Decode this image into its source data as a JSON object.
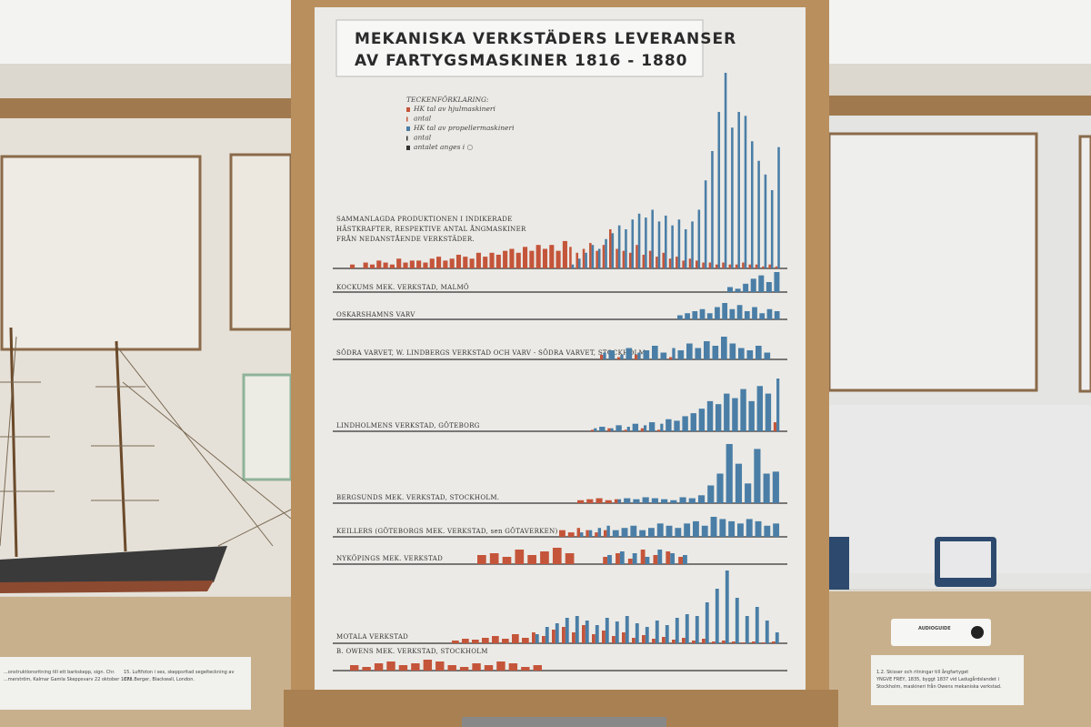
{
  "panel": {
    "title_lines": [
      "MEKANISKA VERKSTÄDERS LEVERANSER",
      "AV FARTYGSMASKINER 1816 - 1880"
    ],
    "legend": {
      "heading": "TECKENFÖRKLARING:",
      "items": [
        "HK tal av hjulmaskineri",
        "antal",
        "HK tal av propellermaskineri",
        "antal",
        "antalet anges i ○"
      ]
    },
    "summary_note": [
      "SAMMANLAGDA PRODUKTIONEN I INDIKERADE",
      "HÄSTKRAFTER, RESPEKTIVE ANTAL ÅNGMASKINER",
      "FRÅN NEDANSTÅENDE VERKSTÄDER."
    ],
    "summary": {
      "paddle": [
        2,
        0,
        3,
        2,
        4,
        3,
        2,
        5,
        3,
        4,
        4,
        3,
        5,
        6,
        4,
        5,
        7,
        6,
        5,
        8,
        6,
        8,
        7,
        9,
        10,
        8,
        11,
        9,
        12,
        10,
        12,
        9,
        14,
        11,
        8,
        10,
        13,
        9,
        12,
        20,
        10,
        9,
        8,
        12,
        7,
        9,
        6,
        8,
        5,
        6,
        4,
        5,
        4,
        3,
        3,
        2,
        3,
        2,
        2,
        3,
        2,
        2,
        1,
        2,
        1
      ],
      "propeller": [
        0,
        0,
        0,
        0,
        0,
        0,
        0,
        0,
        0,
        0,
        0,
        0,
        0,
        0,
        0,
        0,
        0,
        0,
        0,
        0,
        0,
        0,
        0,
        0,
        0,
        0,
        0,
        0,
        0,
        0,
        0,
        0,
        0,
        2,
        5,
        8,
        12,
        10,
        15,
        18,
        22,
        20,
        25,
        28,
        26,
        30,
        24,
        27,
        22,
        25,
        20,
        24,
        30,
        45,
        60,
        80,
        100,
        72,
        80,
        78,
        65,
        55,
        48,
        40,
        62
      ]
    },
    "rows": [
      {
        "label": "KOCKUMS MEK. VERKSTAD, MALMÖ",
        "paddle": [
          0,
          0,
          0,
          0,
          0,
          0,
          0
        ],
        "propeller": [
          3,
          2,
          5,
          8,
          10,
          6,
          12
        ]
      },
      {
        "label": "OSKARSHAMNS VARV",
        "paddle": [
          0,
          0,
          0,
          0,
          0,
          0,
          0,
          0,
          0,
          0,
          0,
          0,
          0,
          0
        ],
        "propeller": [
          2,
          3,
          4,
          5,
          3,
          6,
          8,
          5,
          7,
          4,
          6,
          3,
          5,
          4
        ]
      },
      {
        "label": "SÖDRA VARVET, W. LINDBERGS VERKSTAD OCH VARV - SÖDRA VARVET, STOCKHOLM.",
        "paddle": [
          2,
          0,
          1,
          0,
          2,
          0,
          0,
          0,
          1,
          0,
          0,
          0,
          0,
          0,
          0,
          0,
          0,
          0,
          0,
          0
        ],
        "propeller": [
          3,
          4,
          2,
          5,
          3,
          4,
          6,
          3,
          5,
          4,
          7,
          5,
          8,
          6,
          10,
          7,
          5,
          4,
          6,
          3
        ]
      },
      {
        "label": "LINDHOLMENS VERKSTAD, GÖTEBORG",
        "paddle": [
          1,
          0,
          2,
          0,
          1,
          0,
          2,
          0,
          1,
          0,
          0,
          0,
          0,
          0,
          0,
          0,
          0,
          0,
          0,
          0,
          0,
          0,
          6
        ],
        "propeller": [
          2,
          3,
          2,
          4,
          3,
          5,
          4,
          6,
          5,
          8,
          7,
          10,
          12,
          15,
          20,
          18,
          25,
          22,
          28,
          20,
          30,
          25,
          35
        ]
      },
      {
        "label": "BERGSUNDS MEK. VERKSTAD, STOCKHOLM.",
        "paddle": [
          3,
          4,
          5,
          3,
          4,
          0,
          0,
          0,
          0,
          0,
          0,
          0,
          0,
          0,
          0,
          0,
          0,
          0,
          0,
          0,
          0,
          0
        ],
        "propeller": [
          0,
          0,
          0,
          0,
          4,
          5,
          4,
          6,
          5,
          4,
          3,
          6,
          5,
          8,
          18,
          30,
          60,
          40,
          20,
          55,
          30,
          32
        ]
      },
      {
        "label": "KEILLERS (GÖTEBORGS MEK. VERKSTAD, sen GÖTAVERKEN)",
        "paddle": [
          3,
          2,
          4,
          3,
          2,
          3,
          0,
          0,
          0,
          0,
          0,
          0,
          0,
          0,
          0,
          0,
          0,
          0,
          0,
          0,
          0,
          0,
          0,
          0,
          0
        ],
        "propeller": [
          0,
          0,
          2,
          3,
          4,
          5,
          3,
          4,
          5,
          3,
          4,
          6,
          5,
          4,
          6,
          7,
          5,
          9,
          8,
          7,
          6,
          8,
          7,
          5,
          6
        ]
      },
      {
        "label": "NYKÖPINGS MEK. VERKSTAD",
        "paddle": [
          5,
          6,
          4,
          8,
          5,
          7,
          9,
          6,
          0,
          0,
          4,
          6,
          3,
          8,
          5,
          7,
          4
        ],
        "propeller": [
          0,
          0,
          0,
          0,
          0,
          0,
          0,
          0,
          0,
          0,
          5,
          7,
          6,
          4,
          8,
          6,
          5
        ]
      },
      {
        "label": "MOTALA VERKSTAD",
        "paddle": [
          3,
          5,
          4,
          6,
          8,
          5,
          10,
          6,
          12,
          8,
          15,
          18,
          12,
          20,
          10,
          14,
          8,
          12,
          6,
          9,
          5,
          7,
          4,
          6,
          3,
          5,
          2,
          3,
          2,
          1,
          2,
          1,
          2
        ],
        "propeller": [
          0,
          0,
          0,
          0,
          0,
          0,
          0,
          0,
          10,
          18,
          22,
          28,
          30,
          25,
          20,
          28,
          24,
          30,
          22,
          18,
          25,
          20,
          28,
          32,
          30,
          45,
          60,
          80,
          50,
          30,
          40,
          25,
          12
        ]
      },
      {
        "label": "B. OWENS MEK. VERKSTAD, STOCKHOLM",
        "paddle": [
          3,
          2,
          4,
          5,
          3,
          4,
          6,
          5,
          3,
          2,
          4,
          3,
          5,
          4,
          2,
          3
        ],
        "propeller": [
          0,
          0,
          0,
          0,
          0,
          0,
          0,
          0,
          0,
          0,
          0,
          0,
          0,
          0,
          0,
          0
        ]
      }
    ]
  },
  "placards": {
    "left_1": [
      "...onstruktionsritning till ett barkskepp, sign. Chr.",
      "...merström, Kalmar Gamla Skeppsvarv 22 oktober 1873."
    ],
    "left_2": [
      "15.  Luftfoton i sex, skeppsritad segelteckning av",
      "Chr. Berger, Blackwall, London."
    ],
    "right": [
      "1.2.  Skisser och ritningar till ångfartyget",
      "YNGVE FREY, 1835, byggt 1837 vid Ladugårdslandet i",
      "Stockholm, maskineri från Owens mekaniska verkstad."
    ],
    "audio": "AUDIOGUIDE"
  }
}
